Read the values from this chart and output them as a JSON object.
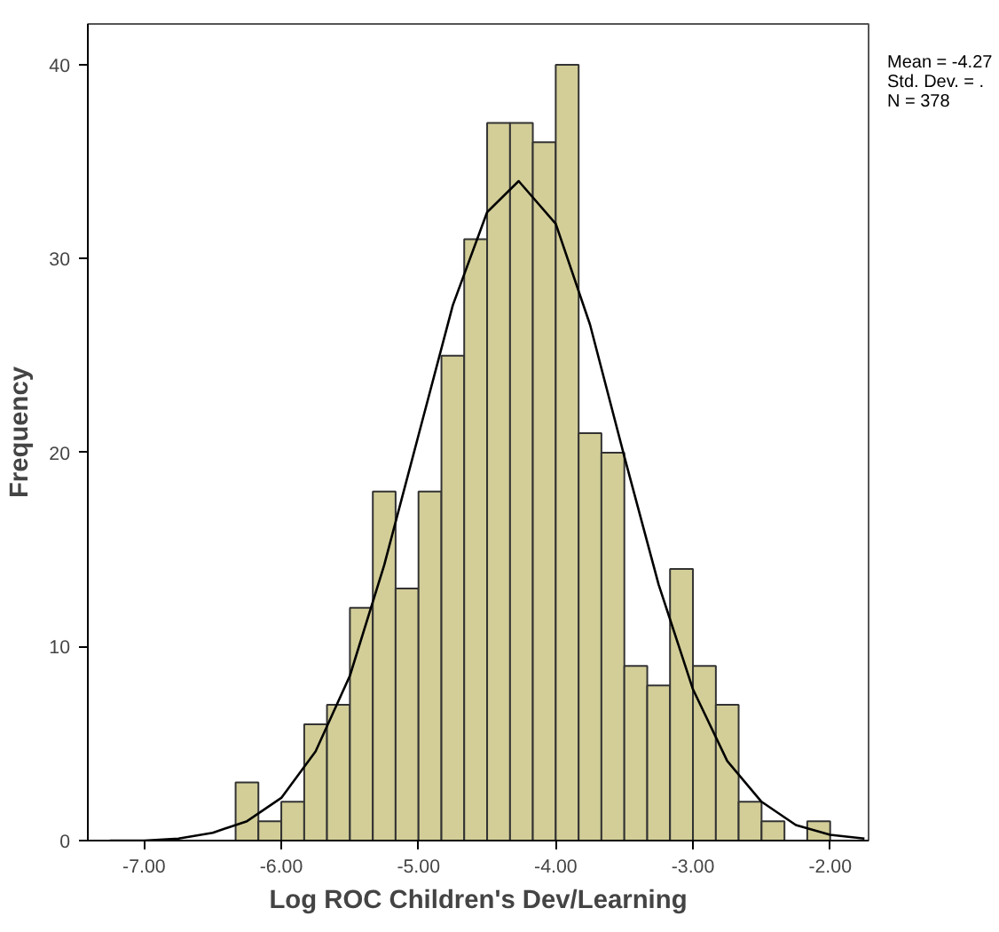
{
  "chart_data": {
    "type": "histogram",
    "xlabel": "Log ROC Children's Dev/Learning",
    "ylabel": "Frequency",
    "bins": [
      -6.333,
      -6.167,
      -6.0,
      -5.833,
      -5.667,
      -5.5,
      -5.333,
      -5.167,
      -5.0,
      -4.833,
      -4.667,
      -4.5,
      -4.333,
      -4.167,
      -4.0,
      -3.833,
      -3.667,
      -3.5,
      -3.333,
      -3.167,
      -3.0,
      -2.833,
      -2.667,
      -2.5,
      -2.333,
      -2.167,
      -2.0
    ],
    "values": [
      3,
      1,
      2,
      6,
      7,
      12,
      18,
      13,
      18,
      25,
      31,
      37,
      37,
      36,
      40,
      21,
      20,
      9,
      8,
      14,
      9,
      7,
      2,
      1,
      0,
      1
    ],
    "color": "#d3ce98",
    "series": [
      {
        "type": "line",
        "color": "#000000",
        "x": [
          -7.25,
          -7.0,
          -6.75,
          -6.5,
          -6.25,
          -6.0,
          -5.75,
          -5.5,
          -5.25,
          -5.0,
          -4.75,
          -4.5,
          -4.27,
          -4.0,
          -3.75,
          -3.5,
          -3.25,
          -3.0,
          -2.75,
          -2.5,
          -2.25,
          -2.0,
          -1.75
        ],
        "values": [
          0.0,
          0.0,
          0.1,
          0.4,
          1.0,
          2.2,
          4.6,
          8.5,
          14.2,
          20.9,
          27.6,
          32.4,
          34.0,
          31.8,
          26.6,
          19.8,
          13.2,
          7.8,
          4.1,
          2.0,
          0.8,
          0.3,
          0.1
        ]
      }
    ],
    "xlim": [
      -7.41,
      -1.72
    ],
    "ylim": [
      0,
      42.1
    ],
    "xticks": [
      {
        "value": -7,
        "label": "-7.00"
      },
      {
        "value": -6,
        "label": "-6.00"
      },
      {
        "value": -5,
        "label": "-5.00"
      },
      {
        "value": -4,
        "label": "-4.00"
      },
      {
        "value": -3,
        "label": "-3.00"
      },
      {
        "value": -2,
        "label": "-2.00"
      }
    ],
    "yticks": [
      0,
      10,
      20,
      30,
      40
    ],
    "annotations": [
      "Mean = -4.27",
      "Std. Dev. = .",
      "N = 378"
    ],
    "grid": false
  }
}
